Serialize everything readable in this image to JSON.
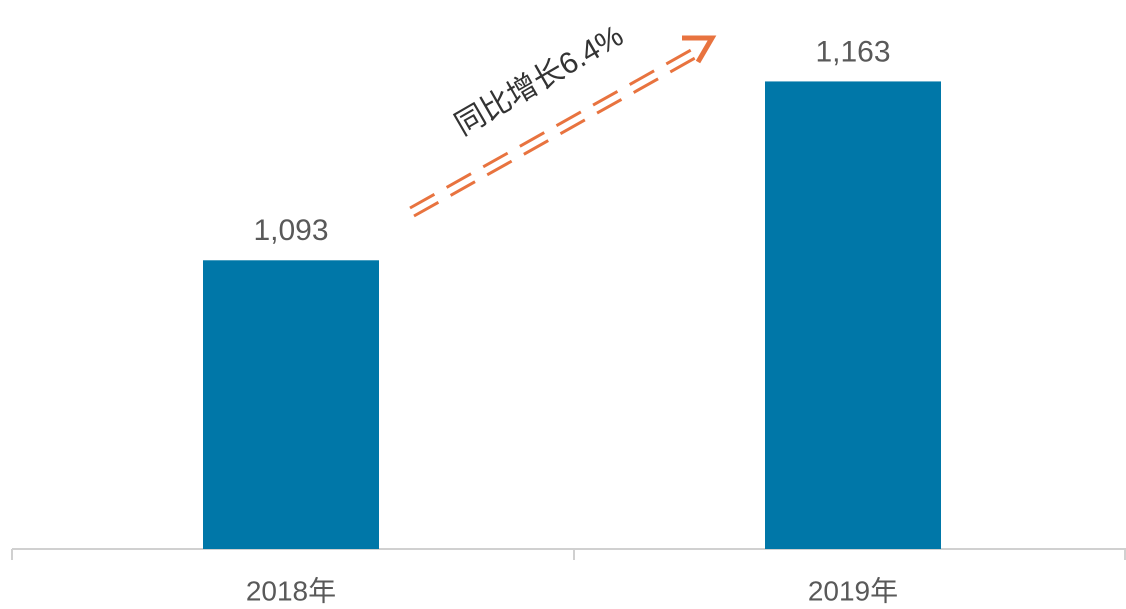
{
  "chart_data": {
    "type": "bar",
    "categories": [
      "2018年",
      "2019年"
    ],
    "values": [
      1093,
      1163
    ],
    "value_labels": [
      "1,093",
      "1,163"
    ],
    "color": "#0077a8",
    "ylim": [
      980,
      1180
    ],
    "annotation": "同比增长6.4%",
    "annotation_color": "#e8733f"
  }
}
